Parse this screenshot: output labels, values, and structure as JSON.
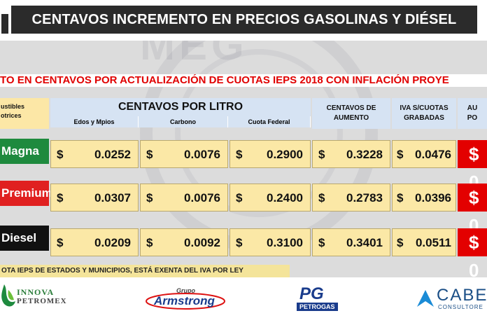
{
  "title": "CENTAVOS INCREMENTO EN PRECIOS GASOLINAS Y DIÉSEL",
  "subtitle": "TO EN CENTAVOS POR ACTUALIZACIÓN DE CUOTAS IEPS 2018 CON INFLACIÓN PROYE",
  "headers": {
    "fuel_col_line1": "ustibles",
    "fuel_col_line2": "otrices",
    "centavos_litro": "CENTAVOS POR LITRO",
    "edos": "Edos y Mpios",
    "carbono": "Carbono",
    "cuota_federal": "Cuota Federal",
    "aumento_line1": "CENTAVOS DE",
    "aumento_line2": "AUMENTO",
    "iva_line1": "IVA S/CUOTAS",
    "iva_line2": "GRABADAS",
    "last_line1": "AU",
    "last_line2": "PO"
  },
  "currency": "$",
  "rows": [
    {
      "fuel": "Magna",
      "edos": "0.0252",
      "carbono": "0.0076",
      "federal": "0.2900",
      "aumento": "0.3228",
      "iva": "0.0476",
      "last": "$ 0"
    },
    {
      "fuel": "Premium",
      "edos": "0.0307",
      "carbono": "0.0076",
      "federal": "0.2400",
      "aumento": "0.2783",
      "iva": "0.0396",
      "last": "$ 0"
    },
    {
      "fuel": "Diesel",
      "edos": "0.0209",
      "carbono": "0.0092",
      "federal": "0.3100",
      "aumento": "0.3401",
      "iva": "0.0511",
      "last": "$ 0"
    }
  ],
  "note": "OTA IEPS DE ESTADOS Y MUNICIPIOS, ESTÁ EXENTA DEL IVA POR LEY",
  "logos": {
    "innova_line1": "INNOVA",
    "innova_line2": "PETROMEX",
    "grupo": "Grupo",
    "armstrong": "Armstrong",
    "pg": "PG",
    "petrogas": "PETROGAS",
    "cabe": "CABE",
    "consultores": "CONSULTORE"
  },
  "watermark": "MEG",
  "colors": {
    "red": "#e30000",
    "green": "#1e8a3e",
    "yellow": "#fbe8a6",
    "blue": "#d6e3f3"
  }
}
